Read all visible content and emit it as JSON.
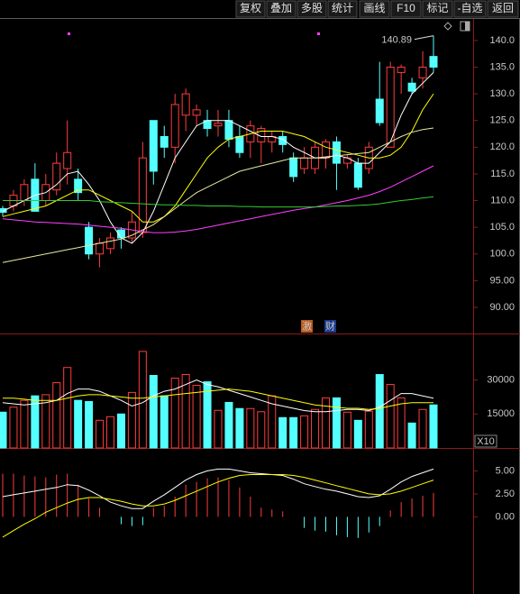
{
  "toolbar": [
    "复权",
    "叠加",
    "多股",
    "统计",
    "画线",
    "F10",
    "标记",
    "-自选",
    "返回"
  ],
  "chart_data": [
    {
      "type": "candlestick",
      "up_color": "#ff3c3c",
      "down_color": "#54ffff",
      "ylim": [
        85.1,
        144.2
      ],
      "yticks": [
        {
          "value": 140,
          "label": "140.0"
        },
        {
          "value": 135,
          "label": "135.0"
        },
        {
          "value": 130,
          "label": "130.0"
        },
        {
          "value": 125,
          "label": "125.0"
        },
        {
          "value": 120,
          "label": "120.0"
        },
        {
          "value": 115,
          "label": "115.0"
        },
        {
          "value": 110,
          "label": "110.0"
        },
        {
          "value": 105,
          "label": "105.0"
        },
        {
          "value": 100,
          "label": "100.0"
        },
        {
          "value": 95,
          "label": "95.00"
        },
        {
          "value": 90,
          "label": "90.00"
        }
      ],
      "open": [
        108.5,
        109,
        110,
        114,
        110,
        112,
        116,
        114,
        105,
        100,
        101,
        104.5,
        103,
        104,
        125,
        122,
        120,
        126,
        126,
        125,
        124,
        125,
        122,
        121,
        121,
        121,
        122,
        118,
        116,
        116,
        118,
        121,
        117,
        117,
        116,
        129,
        120,
        134,
        132,
        133,
        137
      ],
      "high": [
        109,
        112,
        114,
        117,
        115,
        119,
        125,
        116,
        106,
        103,
        104,
        105,
        108,
        121,
        125,
        124,
        130,
        131,
        128,
        127,
        127,
        127,
        124,
        125,
        124,
        123,
        123,
        119,
        120,
        121,
        121.5,
        122,
        118.5,
        118,
        121,
        136,
        136,
        135.5,
        133,
        138,
        140.89
      ],
      "low": [
        107,
        108,
        109,
        108,
        109,
        111,
        113,
        110,
        99,
        97.5,
        100,
        101,
        102,
        103,
        113,
        118,
        117,
        123,
        124,
        122,
        122,
        120,
        118,
        118,
        117,
        119,
        119,
        113.5,
        115,
        115,
        116,
        112,
        116,
        112,
        115,
        124,
        120,
        130,
        130,
        131,
        134
      ],
      "close": [
        107.8,
        111,
        113,
        108,
        113,
        117,
        119,
        111.5,
        100,
        102,
        103,
        103,
        106,
        118,
        115.5,
        120,
        128,
        130,
        127,
        123.5,
        124.5,
        121.5,
        119,
        124,
        123.5,
        122,
        120.5,
        114.5,
        118,
        120,
        121,
        117,
        118,
        112.5,
        120,
        124.6,
        135,
        135,
        130.5,
        135,
        135
      ],
      "series": [
        {
          "color": "#ffffff",
          "values": [
            108,
            109,
            110,
            111,
            111.5,
            113,
            115,
            115.5,
            113,
            110,
            106,
            103,
            102,
            104,
            108,
            113,
            118,
            121,
            124,
            125,
            125,
            125,
            124,
            123,
            122,
            122,
            121.5,
            120,
            119,
            118,
            118,
            118.5,
            118,
            117,
            117,
            119,
            121,
            126,
            130,
            132,
            134
          ]
        },
        {
          "color": "#ffff00",
          "values": [
            107,
            107.5,
            108,
            108.5,
            109,
            110,
            111,
            112,
            112,
            111,
            110,
            109,
            108,
            106,
            106,
            107,
            109,
            112,
            115,
            118,
            120,
            121.5,
            122,
            122.5,
            123,
            123,
            123,
            122.5,
            122,
            121,
            120,
            119.5,
            119,
            118.5,
            118,
            118,
            118.5,
            120,
            123,
            127,
            130
          ]
        },
        {
          "color": "#e8e8a0",
          "values": [
            98.4,
            98.8,
            99.2,
            99.6,
            100,
            100.4,
            100.8,
            101.2,
            101.6,
            102,
            102.4,
            102.8,
            103.5,
            104.5,
            105.5,
            107,
            108.5,
            110,
            111.5,
            112.5,
            113.5,
            114.5,
            115.5,
            116,
            116.5,
            117,
            117.5,
            118,
            118,
            118,
            118.2,
            118.4,
            118.6,
            118.8,
            119,
            120,
            121,
            122,
            122.8,
            123.3,
            123.6
          ]
        },
        {
          "color": "#ff40ff",
          "values": [
            106.6,
            106.4,
            106.2,
            106,
            105.9,
            105.8,
            105.7,
            105.6,
            105.4,
            105.2,
            105,
            104.8,
            104.5,
            104.2,
            104,
            104,
            104.1,
            104.3,
            104.6,
            105,
            105.4,
            105.8,
            106.2,
            106.6,
            107,
            107.4,
            107.8,
            108.2,
            108.5,
            108.8,
            109.2,
            109.6,
            110,
            110.5,
            111,
            111.7,
            112.5,
            113.5,
            114.5,
            115.5,
            116.5
          ]
        },
        {
          "color": "#33cc33",
          "values": [
            110,
            110,
            110,
            110,
            110,
            110,
            110,
            110,
            110,
            109.8,
            109.7,
            109.6,
            109.5,
            109.4,
            109.3,
            109.2,
            109.2,
            109.1,
            109.1,
            109,
            109,
            109,
            108.9,
            108.9,
            108.8,
            108.8,
            108.8,
            108.8,
            108.8,
            108.8,
            108.9,
            109,
            109,
            109.1,
            109.2,
            109.4,
            109.7,
            110,
            110.2,
            110.5,
            110.7
          ]
        }
      ],
      "annotation": 140.89,
      "badges": [
        "激",
        "财"
      ]
    },
    {
      "type": "bar",
      "ylim": [
        0,
        49700
      ],
      "yticks": [
        30000,
        15000
      ],
      "unit_label": "X10",
      "values": [
        15800,
        18000,
        21000,
        23000,
        23500,
        28800,
        35500,
        21000,
        20500,
        12200,
        13800,
        15000,
        24500,
        42600,
        32000,
        23000,
        30800,
        32400,
        27600,
        29200,
        16600,
        20100,
        17400,
        17400,
        16000,
        23000,
        13400,
        13400,
        14200,
        17000,
        22100,
        22100,
        15800,
        12200,
        16200,
        32400,
        28000,
        22100,
        11000,
        17000,
        19000
      ],
      "series": [
        {
          "color": "#ffffff",
          "values": [
            20000,
            19500,
            19000,
            19500,
            20000,
            21000,
            24000,
            26000,
            26000,
            25000,
            23000,
            21000,
            18500,
            20000,
            23000,
            25000,
            26000,
            28000,
            30000,
            28000,
            27000,
            25500,
            24000,
            22500,
            21000,
            19500,
            18500,
            17500,
            16500,
            16000,
            16000,
            16500,
            17000,
            17000,
            16500,
            18000,
            21000,
            24000,
            24000,
            23000,
            22000
          ]
        },
        {
          "color": "#ffff00",
          "values": [
            22000,
            22000,
            21500,
            21000,
            21000,
            21000,
            22000,
            23000,
            23500,
            23500,
            23000,
            22500,
            22000,
            22000,
            22500,
            23000,
            23500,
            24000,
            24500,
            25000,
            25500,
            26000,
            25500,
            25000,
            24000,
            23000,
            22000,
            21000,
            20000,
            19000,
            18500,
            18000,
            17500,
            17500,
            17000,
            17500,
            18500,
            19500,
            20000,
            20000,
            20000
          ]
        }
      ]
    },
    {
      "type": "macd",
      "up_color": "#ff3c3c",
      "down_color": "#54ffff",
      "ylim": [
        -8,
        7.2
      ],
      "yticks": [
        {
          "value": 5,
          "label": "5.00"
        },
        {
          "value": 2.5,
          "label": "2.50"
        },
        {
          "value": 0,
          "label": "0.00"
        }
      ],
      "values": [
        4.7,
        4.7,
        4.5,
        4.4,
        4.3,
        4.6,
        4.7,
        3.5,
        2,
        1,
        0,
        -0.8,
        -1,
        -0.9,
        1,
        1.2,
        2.2,
        3.5,
        3.8,
        4.2,
        4.3,
        4,
        3.2,
        2.2,
        1,
        0.8,
        0.6,
        0,
        -1.2,
        -1.5,
        -1.6,
        -2,
        -2.2,
        -2.3,
        -1.7,
        -1,
        0.7,
        1.6,
        2,
        2.3,
        2.6
      ],
      "series": [
        {
          "color": "#ffffff",
          "values": [
            2.2,
            2.4,
            2.6,
            2.8,
            3,
            3.2,
            3.5,
            3.4,
            2.9,
            2.3,
            1.6,
            1.2,
            0.9,
            0.9,
            1.7,
            2.4,
            3.2,
            4,
            4.6,
            5,
            5.2,
            5.2,
            5,
            4.8,
            4.7,
            4.6,
            4.5,
            4.1,
            3.6,
            3.3,
            3,
            2.8,
            2.5,
            2.2,
            2.1,
            2.3,
            3,
            3.8,
            4.4,
            4.8,
            5.2
          ]
        },
        {
          "color": "#ffff00",
          "values": [
            -2.2,
            -1.5,
            -0.8,
            -0.2,
            0.5,
            1,
            1.5,
            1.9,
            2.1,
            2.1,
            1.9,
            1.7,
            1.4,
            1.2,
            1.2,
            1.4,
            1.8,
            2.3,
            2.8,
            3.3,
            3.8,
            4.2,
            4.5,
            4.6,
            4.6,
            4.6,
            4.6,
            4.5,
            4.3,
            4,
            3.7,
            3.4,
            3.1,
            2.8,
            2.5,
            2.4,
            2.5,
            2.8,
            3.2,
            3.6,
            4
          ]
        }
      ]
    }
  ]
}
